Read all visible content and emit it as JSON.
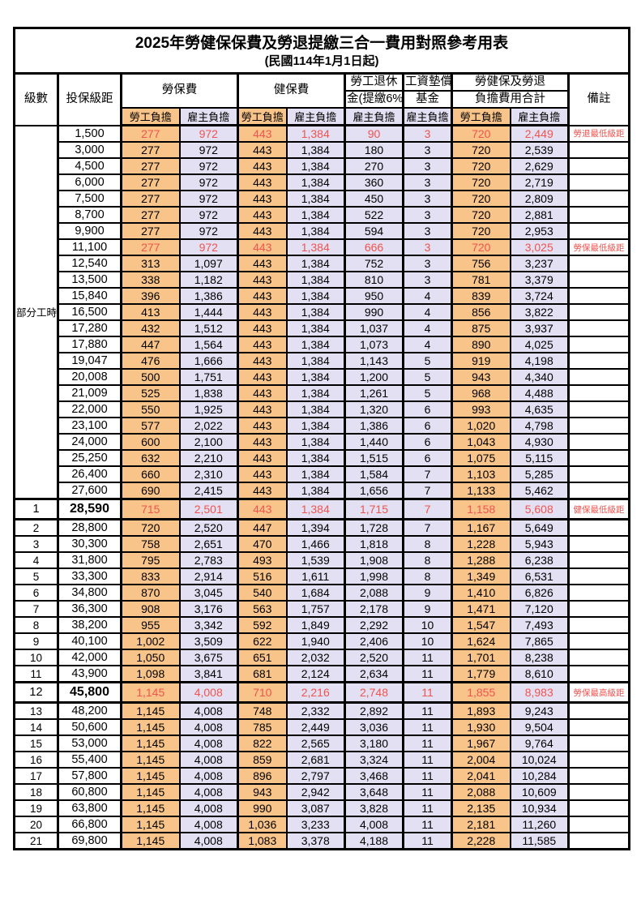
{
  "page": {
    "title_line1": "2025年勞健保保費及勞退提繳三合一費用對照參考用表",
    "title_line2": "(民國114年1月1日起)"
  },
  "colors": {
    "employee_col_bg": "#F9C489",
    "employer_col_bg": "#E2E0F2",
    "highlight_text": "#F05450",
    "grid": "#000000"
  },
  "header": {
    "level": "級數",
    "bracket": "投保級距",
    "labor_insurance": "勞保費",
    "health_insurance": "健保費",
    "pension_line1": "勞工退休",
    "pension_line2": "金(提繳6%)",
    "wage_fund_line1": "工資墊償",
    "wage_fund_line2": "基金",
    "total_line1": "勞健保及勞退",
    "total_line2": "負擔費用合計",
    "note": "備註",
    "employee": "勞工負擔",
    "employer": "雇主負擔"
  },
  "section": {
    "label": "部分工時",
    "span": 23
  },
  "rows": [
    {
      "lv": "",
      "amt": "1,500",
      "cells": [
        "277",
        "972",
        "443",
        "1,384",
        "90",
        "3",
        "720",
        "2,449"
      ],
      "note": "勞退最低級距",
      "red": true,
      "em": false
    },
    {
      "lv": "",
      "amt": "3,000",
      "cells": [
        "277",
        "972",
        "443",
        "1,384",
        "180",
        "3",
        "720",
        "2,539"
      ],
      "note": "",
      "red": false,
      "em": false
    },
    {
      "lv": "",
      "amt": "4,500",
      "cells": [
        "277",
        "972",
        "443",
        "1,384",
        "270",
        "3",
        "720",
        "2,629"
      ],
      "note": "",
      "red": false,
      "em": false
    },
    {
      "lv": "",
      "amt": "6,000",
      "cells": [
        "277",
        "972",
        "443",
        "1,384",
        "360",
        "3",
        "720",
        "2,719"
      ],
      "note": "",
      "red": false,
      "em": false
    },
    {
      "lv": "",
      "amt": "7,500",
      "cells": [
        "277",
        "972",
        "443",
        "1,384",
        "450",
        "3",
        "720",
        "2,809"
      ],
      "note": "",
      "red": false,
      "em": false
    },
    {
      "lv": "",
      "amt": "8,700",
      "cells": [
        "277",
        "972",
        "443",
        "1,384",
        "522",
        "3",
        "720",
        "2,881"
      ],
      "note": "",
      "red": false,
      "em": false
    },
    {
      "lv": "",
      "amt": "9,900",
      "cells": [
        "277",
        "972",
        "443",
        "1,384",
        "594",
        "3",
        "720",
        "2,953"
      ],
      "note": "",
      "red": false,
      "em": false
    },
    {
      "lv": "",
      "amt": "11,100",
      "cells": [
        "277",
        "972",
        "443",
        "1,384",
        "666",
        "3",
        "720",
        "3,025"
      ],
      "note": "勞保最低級距",
      "red": true,
      "em": false
    },
    {
      "lv": "",
      "amt": "12,540",
      "cells": [
        "313",
        "1,097",
        "443",
        "1,384",
        "752",
        "3",
        "756",
        "3,237"
      ],
      "note": "",
      "red": false,
      "em": false
    },
    {
      "lv": "",
      "amt": "13,500",
      "cells": [
        "338",
        "1,182",
        "443",
        "1,384",
        "810",
        "3",
        "781",
        "3,379"
      ],
      "note": "",
      "red": false,
      "em": false
    },
    {
      "lv": "",
      "amt": "15,840",
      "cells": [
        "396",
        "1,386",
        "443",
        "1,384",
        "950",
        "4",
        "839",
        "3,724"
      ],
      "note": "",
      "red": false,
      "em": false
    },
    {
      "lv": "",
      "amt": "16,500",
      "cells": [
        "413",
        "1,444",
        "443",
        "1,384",
        "990",
        "4",
        "856",
        "3,822"
      ],
      "note": "",
      "red": false,
      "em": false
    },
    {
      "lv": "",
      "amt": "17,280",
      "cells": [
        "432",
        "1,512",
        "443",
        "1,384",
        "1,037",
        "4",
        "875",
        "3,937"
      ],
      "note": "",
      "red": false,
      "em": false
    },
    {
      "lv": "",
      "amt": "17,880",
      "cells": [
        "447",
        "1,564",
        "443",
        "1,384",
        "1,073",
        "4",
        "890",
        "4,025"
      ],
      "note": "",
      "red": false,
      "em": false
    },
    {
      "lv": "",
      "amt": "19,047",
      "cells": [
        "476",
        "1,666",
        "443",
        "1,384",
        "1,143",
        "5",
        "919",
        "4,198"
      ],
      "note": "",
      "red": false,
      "em": false
    },
    {
      "lv": "",
      "amt": "20,008",
      "cells": [
        "500",
        "1,751",
        "443",
        "1,384",
        "1,200",
        "5",
        "943",
        "4,340"
      ],
      "note": "",
      "red": false,
      "em": false
    },
    {
      "lv": "",
      "amt": "21,009",
      "cells": [
        "525",
        "1,838",
        "443",
        "1,384",
        "1,261",
        "5",
        "968",
        "4,488"
      ],
      "note": "",
      "red": false,
      "em": false
    },
    {
      "lv": "",
      "amt": "22,000",
      "cells": [
        "550",
        "1,925",
        "443",
        "1,384",
        "1,320",
        "6",
        "993",
        "4,635"
      ],
      "note": "",
      "red": false,
      "em": false
    },
    {
      "lv": "",
      "amt": "23,100",
      "cells": [
        "577",
        "2,022",
        "443",
        "1,384",
        "1,386",
        "6",
        "1,020",
        "4,798"
      ],
      "note": "",
      "red": false,
      "em": false
    },
    {
      "lv": "",
      "amt": "24,000",
      "cells": [
        "600",
        "2,100",
        "443",
        "1,384",
        "1,440",
        "6",
        "1,043",
        "4,930"
      ],
      "note": "",
      "red": false,
      "em": false
    },
    {
      "lv": "",
      "amt": "25,250",
      "cells": [
        "632",
        "2,210",
        "443",
        "1,384",
        "1,515",
        "6",
        "1,075",
        "5,115"
      ],
      "note": "",
      "red": false,
      "em": false
    },
    {
      "lv": "",
      "amt": "26,400",
      "cells": [
        "660",
        "2,310",
        "443",
        "1,384",
        "1,584",
        "7",
        "1,103",
        "5,285"
      ],
      "note": "",
      "red": false,
      "em": false
    },
    {
      "lv": "",
      "amt": "27,600",
      "cells": [
        "690",
        "2,415",
        "443",
        "1,384",
        "1,656",
        "7",
        "1,133",
        "5,462"
      ],
      "note": "",
      "red": false,
      "em": false
    },
    {
      "lv": "1",
      "amt": "28,590",
      "cells": [
        "715",
        "2,501",
        "443",
        "1,384",
        "1,715",
        "7",
        "1,158",
        "5,608"
      ],
      "note": "健保最低級距",
      "red": true,
      "em": true
    },
    {
      "lv": "2",
      "amt": "28,800",
      "cells": [
        "720",
        "2,520",
        "447",
        "1,394",
        "1,728",
        "7",
        "1,167",
        "5,649"
      ],
      "note": "",
      "red": false,
      "em": false
    },
    {
      "lv": "3",
      "amt": "30,300",
      "cells": [
        "758",
        "2,651",
        "470",
        "1,466",
        "1,818",
        "8",
        "1,228",
        "5,943"
      ],
      "note": "",
      "red": false,
      "em": false
    },
    {
      "lv": "4",
      "amt": "31,800",
      "cells": [
        "795",
        "2,783",
        "493",
        "1,539",
        "1,908",
        "8",
        "1,288",
        "6,238"
      ],
      "note": "",
      "red": false,
      "em": false
    },
    {
      "lv": "5",
      "amt": "33,300",
      "cells": [
        "833",
        "2,914",
        "516",
        "1,611",
        "1,998",
        "8",
        "1,349",
        "6,531"
      ],
      "note": "",
      "red": false,
      "em": false
    },
    {
      "lv": "6",
      "amt": "34,800",
      "cells": [
        "870",
        "3,045",
        "540",
        "1,684",
        "2,088",
        "9",
        "1,410",
        "6,826"
      ],
      "note": "",
      "red": false,
      "em": false
    },
    {
      "lv": "7",
      "amt": "36,300",
      "cells": [
        "908",
        "3,176",
        "563",
        "1,757",
        "2,178",
        "9",
        "1,471",
        "7,120"
      ],
      "note": "",
      "red": false,
      "em": false
    },
    {
      "lv": "8",
      "amt": "38,200",
      "cells": [
        "955",
        "3,342",
        "592",
        "1,849",
        "2,292",
        "10",
        "1,547",
        "7,493"
      ],
      "note": "",
      "red": false,
      "em": false
    },
    {
      "lv": "9",
      "amt": "40,100",
      "cells": [
        "1,002",
        "3,509",
        "622",
        "1,940",
        "2,406",
        "10",
        "1,624",
        "7,865"
      ],
      "note": "",
      "red": false,
      "em": false
    },
    {
      "lv": "10",
      "amt": "42,000",
      "cells": [
        "1,050",
        "3,675",
        "651",
        "2,032",
        "2,520",
        "11",
        "1,701",
        "8,238"
      ],
      "note": "",
      "red": false,
      "em": false
    },
    {
      "lv": "11",
      "amt": "43,900",
      "cells": [
        "1,098",
        "3,841",
        "681",
        "2,124",
        "2,634",
        "11",
        "1,779",
        "8,610"
      ],
      "note": "",
      "red": false,
      "em": false
    },
    {
      "lv": "12",
      "amt": "45,800",
      "cells": [
        "1,145",
        "4,008",
        "710",
        "2,216",
        "2,748",
        "11",
        "1,855",
        "8,983"
      ],
      "note": "勞保最高級距",
      "red": true,
      "em": true
    },
    {
      "lv": "13",
      "amt": "48,200",
      "cells": [
        "1,145",
        "4,008",
        "748",
        "2,332",
        "2,892",
        "11",
        "1,893",
        "9,243"
      ],
      "note": "",
      "red": false,
      "em": false
    },
    {
      "lv": "14",
      "amt": "50,600",
      "cells": [
        "1,145",
        "4,008",
        "785",
        "2,449",
        "3,036",
        "11",
        "1,930",
        "9,504"
      ],
      "note": "",
      "red": false,
      "em": false
    },
    {
      "lv": "15",
      "amt": "53,000",
      "cells": [
        "1,145",
        "4,008",
        "822",
        "2,565",
        "3,180",
        "11",
        "1,967",
        "9,764"
      ],
      "note": "",
      "red": false,
      "em": false
    },
    {
      "lv": "16",
      "amt": "55,400",
      "cells": [
        "1,145",
        "4,008",
        "859",
        "2,681",
        "3,324",
        "11",
        "2,004",
        "10,024"
      ],
      "note": "",
      "red": false,
      "em": false
    },
    {
      "lv": "17",
      "amt": "57,800",
      "cells": [
        "1,145",
        "4,008",
        "896",
        "2,797",
        "3,468",
        "11",
        "2,041",
        "10,284"
      ],
      "note": "",
      "red": false,
      "em": false
    },
    {
      "lv": "18",
      "amt": "60,800",
      "cells": [
        "1,145",
        "4,008",
        "943",
        "2,942",
        "3,648",
        "11",
        "2,088",
        "10,609"
      ],
      "note": "",
      "red": false,
      "em": false
    },
    {
      "lv": "19",
      "amt": "63,800",
      "cells": [
        "1,145",
        "4,008",
        "990",
        "3,087",
        "3,828",
        "11",
        "2,135",
        "10,934"
      ],
      "note": "",
      "red": false,
      "em": false
    },
    {
      "lv": "20",
      "amt": "66,800",
      "cells": [
        "1,145",
        "4,008",
        "1,036",
        "3,233",
        "4,008",
        "11",
        "2,181",
        "11,260"
      ],
      "note": "",
      "red": false,
      "em": false
    },
    {
      "lv": "21",
      "amt": "69,800",
      "cells": [
        "1,145",
        "4,008",
        "1,083",
        "3,378",
        "4,188",
        "11",
        "2,228",
        "11,585"
      ],
      "note": "",
      "red": false,
      "em": false
    }
  ]
}
